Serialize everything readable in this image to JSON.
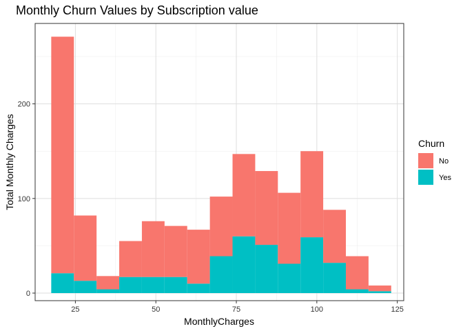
{
  "chart_data": {
    "type": "bar",
    "subtype": "stacked-histogram",
    "title": "Monthly Churn Values by Subscription value",
    "xlabel": "MonthlyCharges",
    "ylabel": "Total Monthly Charges",
    "xlim": [
      12.5,
      127
    ],
    "ylim": [
      -8,
      285
    ],
    "xticks": [
      25,
      50,
      75,
      100,
      125
    ],
    "yticks": [
      0,
      100,
      200
    ],
    "grid": true,
    "legend_title": "Churn",
    "legend_position": "right",
    "bin_width": 7.04,
    "bin_starts": [
      17.5,
      24.54,
      31.58,
      38.62,
      45.66,
      52.7,
      59.74,
      66.78,
      73.82,
      80.86,
      87.9,
      94.94,
      101.98,
      109.02,
      116.06
    ],
    "series": [
      {
        "name": "No",
        "color": "#F8766D",
        "values": [
          250,
          69,
          14,
          38,
          59,
          54,
          57,
          63,
          87,
          78,
          75,
          91,
          56,
          35,
          6
        ]
      },
      {
        "name": "Yes",
        "color": "#00BFC4",
        "values": [
          21,
          13,
          4,
          17,
          17,
          17,
          10,
          39,
          60,
          51,
          31,
          59,
          32,
          4,
          2
        ]
      }
    ]
  }
}
